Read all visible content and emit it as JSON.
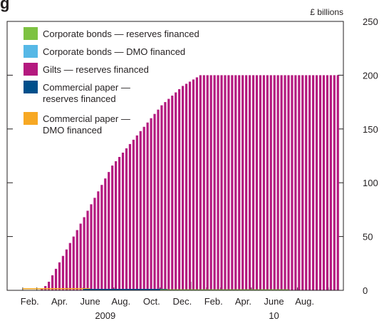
{
  "chart_data": {
    "type": "bar",
    "stacked": true,
    "title_fragment": "g",
    "unit_label": "£ billions",
    "ylim": [
      0,
      250
    ],
    "yticks": [
      "0",
      "50",
      "100",
      "150",
      "200",
      "250"
    ],
    "xlim": [
      "2009-01-01",
      "2010-10-31"
    ],
    "month_labels": [
      {
        "label": "Feb.",
        "date": "2009-02-15"
      },
      {
        "label": "Apr.",
        "date": "2009-04-15"
      },
      {
        "label": "June",
        "date": "2009-06-15"
      },
      {
        "label": "Aug.",
        "date": "2009-08-15"
      },
      {
        "label": "Oct.",
        "date": "2009-10-15"
      },
      {
        "label": "Dec.",
        "date": "2009-12-15"
      },
      {
        "label": "Feb.",
        "date": "2010-02-15"
      },
      {
        "label": "Apr.",
        "date": "2010-04-15"
      },
      {
        "label": "June",
        "date": "2010-06-15"
      },
      {
        "label": "Aug.",
        "date": "2010-08-15"
      }
    ],
    "year_labels": [
      {
        "label": "2009",
        "date": "2009-07-15"
      },
      {
        "label": "10",
        "date": "2010-06-15"
      }
    ],
    "dates": [
      "2009-03-11",
      "2009-03-18",
      "2009-03-25",
      "2009-04-01",
      "2009-04-08",
      "2009-04-15",
      "2009-04-22",
      "2009-04-29",
      "2009-05-06",
      "2009-05-13",
      "2009-05-20",
      "2009-05-27",
      "2009-06-03",
      "2009-06-10",
      "2009-06-17",
      "2009-06-24",
      "2009-07-01",
      "2009-07-08",
      "2009-07-15",
      "2009-07-22",
      "2009-07-29",
      "2009-08-05",
      "2009-08-12",
      "2009-08-19",
      "2009-08-26",
      "2009-09-02",
      "2009-09-09",
      "2009-09-16",
      "2009-09-23",
      "2009-09-30",
      "2009-10-07",
      "2009-10-14",
      "2009-10-21",
      "2009-10-28",
      "2009-11-04",
      "2009-11-11",
      "2009-11-18",
      "2009-11-25",
      "2009-12-02",
      "2009-12-09",
      "2009-12-16",
      "2009-12-23",
      "2009-12-30",
      "2010-01-06",
      "2010-01-13",
      "2010-01-20",
      "2010-01-27",
      "2010-02-03",
      "2010-02-10",
      "2010-02-17",
      "2010-02-24",
      "2010-03-03",
      "2010-03-10",
      "2010-03-17",
      "2010-03-24",
      "2010-03-31",
      "2010-04-07",
      "2010-04-14",
      "2010-04-21",
      "2010-04-28",
      "2010-05-05",
      "2010-05-12",
      "2010-05-19",
      "2010-05-26",
      "2010-06-02",
      "2010-06-09",
      "2010-06-16",
      "2010-06-23",
      "2010-06-30",
      "2010-07-07",
      "2010-07-14",
      "2010-07-21",
      "2010-07-28",
      "2010-08-04",
      "2010-08-11",
      "2010-08-18",
      "2010-08-25",
      "2010-09-01",
      "2010-09-08",
      "2010-09-15",
      "2010-09-22",
      "2010-09-29",
      "2010-10-06",
      "2010-10-13",
      "2010-10-20"
    ],
    "series": [
      {
        "name": "Corporate bonds — reserves financed",
        "legend_lines": [
          "Corporate bonds — reserves financed"
        ],
        "color": "#7dc242",
        "values": [
          0,
          0,
          0,
          0,
          0,
          0,
          0,
          0,
          0,
          0,
          0,
          0,
          0,
          0,
          0,
          0,
          0,
          0,
          0,
          0,
          0,
          0,
          0,
          0,
          0,
          0,
          0,
          0,
          0,
          0,
          0,
          0,
          0,
          0,
          0,
          0,
          0,
          0,
          0,
          0,
          0,
          0,
          0,
          0,
          0,
          0,
          0,
          0,
          0,
          0,
          0,
          0,
          0,
          0,
          0,
          0,
          0,
          0,
          0,
          0,
          0,
          0,
          0,
          0,
          0,
          0,
          0,
          0,
          0,
          0,
          0,
          0,
          0,
          0,
          0,
          0,
          0,
          0,
          0,
          0,
          0,
          0,
          0,
          0,
          0
        ]
      },
      {
        "name": "Corporate bonds — DMO financed",
        "legend_lines": [
          "Corporate bonds — DMO financed"
        ],
        "color": "#56b8e6",
        "values": [
          0,
          0,
          0,
          0,
          0,
          0,
          0,
          0,
          0,
          0,
          0,
          0,
          0,
          0,
          0,
          0,
          0,
          0,
          0,
          0,
          0,
          0,
          0,
          0,
          0,
          0,
          0,
          0,
          0,
          0,
          0,
          0,
          0,
          0,
          0,
          0,
          0,
          0,
          0,
          0,
          0,
          0,
          0,
          0,
          0,
          0,
          0,
          0,
          0,
          0,
          0,
          0,
          0,
          0,
          0,
          0,
          0,
          0,
          0,
          0,
          0,
          0,
          0,
          0,
          0,
          0,
          0,
          0,
          0,
          0,
          0,
          0,
          0,
          0,
          0,
          0,
          0,
          0,
          0,
          0,
          0,
          0,
          0,
          0,
          0
        ]
      },
      {
        "name": "Gilts — reserves financed",
        "legend_lines": [
          "Gilts — reserves financed"
        ],
        "color": "#b4197f",
        "values": [
          2,
          4,
          8,
          14,
          20,
          26,
          32,
          38,
          44,
          50,
          56,
          62,
          68,
          74,
          80,
          86,
          92,
          98,
          104,
          110,
          116,
          120,
          124,
          128,
          132,
          136,
          140,
          144,
          148,
          152,
          156,
          160,
          164,
          168,
          172,
          175,
          178,
          181,
          184,
          187,
          190,
          192,
          194,
          196,
          198,
          200,
          200,
          200,
          200,
          200,
          200,
          200,
          200,
          200,
          200,
          200,
          200,
          200,
          200,
          200,
          200,
          200,
          200,
          200,
          200,
          200,
          200,
          200,
          200,
          200,
          200,
          200,
          200,
          200,
          200,
          200,
          200,
          200,
          200,
          200,
          200,
          200,
          200,
          200,
          200
        ]
      },
      {
        "name": "Commercial paper — reserves financed",
        "legend_lines": [
          "Commercial paper —",
          "reserves financed"
        ],
        "color": "#004f8b",
        "values": [
          0,
          0,
          0,
          0,
          0,
          0,
          0,
          0,
          0,
          0,
          0,
          0,
          0,
          0,
          0,
          0,
          0,
          0,
          0,
          0,
          0,
          0,
          0,
          0,
          0,
          0,
          0,
          0,
          0,
          0,
          0,
          0,
          0,
          0,
          0,
          0,
          0,
          0,
          0,
          0,
          0,
          0,
          0,
          0,
          0,
          0,
          0,
          0,
          0,
          0,
          0,
          0,
          0,
          0,
          0,
          0,
          0,
          0,
          0,
          0,
          0,
          0,
          0,
          0,
          0,
          0,
          0,
          0,
          0,
          0,
          0,
          0,
          0,
          0,
          0,
          0,
          0,
          0,
          0,
          0,
          0,
          0,
          0,
          0,
          0
        ]
      },
      {
        "name": "Commercial paper — DMO financed",
        "legend_lines": [
          "Commercial paper —",
          "DMO financed"
        ],
        "color": "#f7a823",
        "values": [
          0,
          0,
          0,
          0,
          0,
          0,
          0,
          0,
          0,
          0,
          0,
          0,
          0,
          0,
          0,
          0,
          0,
          0,
          0,
          0,
          0,
          0,
          0,
          0,
          0,
          0,
          0,
          0,
          0,
          0,
          0,
          0,
          0,
          0,
          0,
          0,
          0,
          0,
          0,
          0,
          0,
          0,
          0,
          0,
          0,
          0,
          0,
          0,
          0,
          0,
          0,
          0,
          0,
          0,
          0,
          0,
          0,
          0,
          0,
          0,
          0,
          0,
          0,
          0,
          0,
          0,
          0,
          0,
          0,
          0,
          0,
          0,
          0,
          0,
          0,
          0,
          0,
          0,
          0,
          0,
          0,
          0,
          0,
          0,
          0
        ]
      }
    ],
    "bottom_lines": [
      {
        "series": "Commercial paper — DMO financed",
        "from": "2009-02-01",
        "to": "2009-06-15",
        "value": 1.5
      },
      {
        "series": "Commercial paper — reserves financed",
        "from": "2009-06-01",
        "to": "2009-11-15",
        "value": 0.8
      },
      {
        "series": "Corporate bonds — reserves financed",
        "from": "2009-11-01",
        "to": "2010-07-15",
        "value": 0.4
      }
    ],
    "grid": false,
    "legend_position": "top-left"
  }
}
